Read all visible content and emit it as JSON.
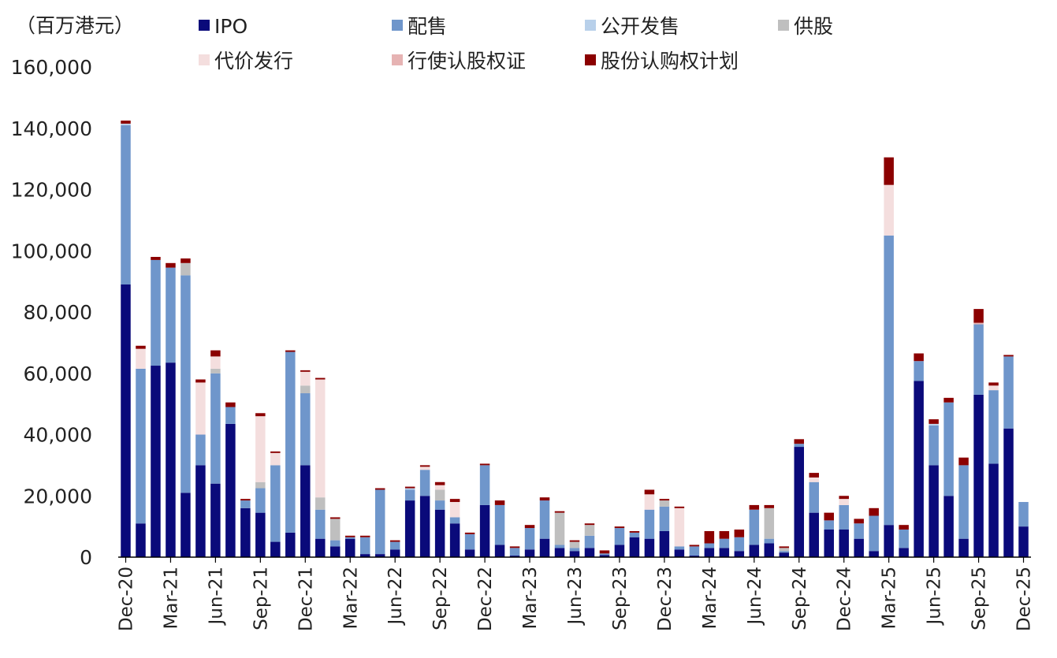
{
  "chart_data": {
    "type": "stacked_bar",
    "unit_label": "（百万港元）",
    "ylim": [
      0,
      160000
    ],
    "yticks": [
      0,
      20000,
      40000,
      60000,
      80000,
      100000,
      120000,
      140000,
      160000
    ],
    "ytick_labels": [
      "0",
      "20,000",
      "40,000",
      "60,000",
      "80,000",
      "100,000",
      "120,000",
      "140,000",
      "160,000"
    ],
    "grid": false,
    "legend_position": "top",
    "categories": [
      "Dec-20",
      "Jan-21",
      "Feb-21",
      "Mar-21",
      "Apr-21",
      "May-21",
      "Jun-21",
      "Jul-21",
      "Aug-21",
      "Sep-21",
      "Oct-21",
      "Nov-21",
      "Dec-21",
      "Jan-22",
      "Feb-22",
      "Mar-22",
      "Apr-22",
      "May-22",
      "Jun-22",
      "Jul-22",
      "Aug-22",
      "Sep-22",
      "Oct-22",
      "Nov-22",
      "Dec-22",
      "Jan-23",
      "Feb-23",
      "Mar-23",
      "Apr-23",
      "May-23",
      "Jun-23",
      "Jul-23",
      "Aug-23",
      "Sep-23",
      "Oct-23",
      "Nov-23",
      "Dec-23",
      "Jan-24",
      "Feb-24",
      "Mar-24",
      "Apr-24",
      "May-24",
      "Jun-24",
      "Jul-24",
      "Aug-24",
      "Sep-24",
      "Oct-24",
      "Nov-24",
      "Dec-24",
      "Jan-25",
      "Feb-25",
      "Mar-25",
      "Apr-25",
      "May-25",
      "Jun-25",
      "Jul-25",
      "Aug-25",
      "Sep-25",
      "Oct-25",
      "Nov-25",
      "Dec-25"
    ],
    "xtick_labels": [
      "Dec-20",
      "",
      "",
      "Mar-21",
      "",
      "",
      "Jun-21",
      "",
      "",
      "Sep-21",
      "",
      "",
      "Dec-21",
      "",
      "",
      "Mar-22",
      "",
      "",
      "Jun-22",
      "",
      "",
      "Sep-22",
      "",
      "",
      "Dec-22",
      "",
      "",
      "Mar-23",
      "",
      "",
      "Jun-23",
      "",
      "",
      "Sep-23",
      "",
      "",
      "Dec-23",
      "",
      "",
      "Mar-24",
      "",
      "",
      "Jun-24",
      "",
      "",
      "Sep-24",
      "",
      "",
      "Dec-24",
      "",
      "",
      "Mar-25",
      "",
      "",
      "Jun-25",
      "",
      "",
      "Sep-25",
      "",
      "",
      "Dec-25"
    ],
    "series": [
      {
        "name": "IPO",
        "color": "#0a0a7a",
        "values": [
          89000,
          11000,
          62500,
          63500,
          21000,
          30000,
          24000,
          43500,
          16000,
          14500,
          5000,
          8000,
          30000,
          6000,
          3500,
          6000,
          1000,
          1000,
          2500,
          18500,
          20000,
          15500,
          11000,
          2500,
          17000,
          4000,
          500,
          2500,
          6000,
          3000,
          2000,
          3000,
          700,
          4000,
          6500,
          6000,
          8500,
          2500,
          500,
          3000,
          3000,
          2000,
          4000,
          4500,
          1500,
          36000,
          14500,
          9000,
          9000,
          6000,
          2000,
          10500,
          3000,
          57500,
          30000,
          20000,
          6000,
          53000,
          30500,
          42000,
          10000
        ]
      },
      {
        "name": "配售",
        "color": "#6f96cb",
        "values": [
          52000,
          50500,
          34500,
          31000,
          71000,
          10000,
          36000,
          5500,
          2500,
          8000,
          25000,
          59000,
          23500,
          9500,
          2000,
          500,
          5500,
          21000,
          2500,
          3500,
          8500,
          3000,
          2000,
          5000,
          13000,
          13000,
          2500,
          7000,
          12500,
          1000,
          1000,
          4000,
          500,
          5500,
          1500,
          9500,
          8000,
          1000,
          3000,
          1500,
          3000,
          4500,
          11500,
          1500,
          500,
          1000,
          10000,
          3000,
          8000,
          5000,
          11500,
          94500,
          6000,
          6500,
          13000,
          30500,
          24000,
          23000,
          24000,
          23500,
          8000
        ]
      },
      {
        "name": "公开发售",
        "color": "#b8d0ea",
        "values": [
          500,
          0,
          0,
          0,
          0,
          0,
          0,
          0,
          0,
          0,
          0,
          0,
          0,
          0,
          0,
          0,
          0,
          0,
          0,
          500,
          0,
          0,
          0,
          0,
          0,
          0,
          0,
          0,
          0,
          0,
          0,
          0,
          0,
          0,
          0,
          0,
          0,
          0,
          0,
          0,
          0,
          0,
          0,
          0,
          0,
          0,
          0,
          0,
          0,
          0,
          0,
          0,
          0,
          0,
          500,
          0,
          0,
          0,
          0,
          0,
          0
        ]
      },
      {
        "name": "供股",
        "color": "#bfbfbf",
        "values": [
          0,
          0,
          0,
          0,
          4000,
          0,
          1500,
          0,
          0,
          2000,
          0,
          0,
          2500,
          4000,
          7000,
          0,
          0,
          0,
          0,
          0,
          0,
          3500,
          0,
          0,
          0,
          0,
          0,
          0,
          0,
          10500,
          2000,
          3500,
          0,
          0,
          0,
          0,
          2000,
          0,
          0,
          0,
          0,
          0,
          0,
          10000,
          1000,
          0,
          0,
          0,
          0,
          0,
          0,
          0,
          0,
          0,
          0,
          0,
          0,
          0,
          0,
          0,
          0
        ]
      },
      {
        "name": "代价发行",
        "color": "#f4dede",
        "values": [
          0,
          6500,
          0,
          0,
          0,
          17000,
          4000,
          0,
          0,
          21500,
          4000,
          0,
          4500,
          38500,
          0,
          0,
          0,
          0,
          0,
          0,
          1000,
          1500,
          5000,
          0,
          0,
          0,
          0,
          0,
          0,
          0,
          0,
          0,
          0,
          0,
          0,
          5000,
          0,
          12500,
          0,
          0,
          0,
          0,
          0,
          0,
          0,
          0,
          1500,
          0,
          2000,
          0,
          0,
          16500,
          0,
          0,
          0,
          0,
          0,
          0,
          1500,
          0,
          0
        ]
      },
      {
        "name": "行使认股权证",
        "color": "#e6b3b3",
        "values": [
          0,
          0,
          0,
          0,
          0,
          0,
          0,
          0,
          0,
          0,
          0,
          0,
          0,
          0,
          0,
          0,
          0,
          0,
          0,
          0,
          0,
          0,
          0,
          0,
          0,
          0,
          0,
          0,
          0,
          0,
          0,
          0,
          0,
          0,
          0,
          0,
          0,
          0,
          0,
          0,
          0,
          0,
          0,
          0,
          0,
          0,
          0,
          0,
          0,
          0,
          0,
          0,
          0,
          0,
          0,
          0,
          0,
          500,
          0,
          0,
          0
        ]
      },
      {
        "name": "股份认购权计划",
        "color": "#8b0000",
        "values": [
          1000,
          1000,
          1000,
          1500,
          1500,
          1000,
          2000,
          1500,
          500,
          1000,
          500,
          500,
          500,
          500,
          500,
          500,
          500,
          500,
          500,
          500,
          500,
          1000,
          1000,
          500,
          500,
          1500,
          500,
          1000,
          1000,
          500,
          500,
          500,
          1000,
          500,
          500,
          1500,
          500,
          500,
          500,
          4000,
          2500,
          2500,
          1500,
          1000,
          500,
          1500,
          1500,
          2500,
          1000,
          1500,
          2500,
          9000,
          1500,
          2500,
          1500,
          1500,
          2500,
          4500,
          1000,
          500,
          0
        ]
      }
    ]
  }
}
